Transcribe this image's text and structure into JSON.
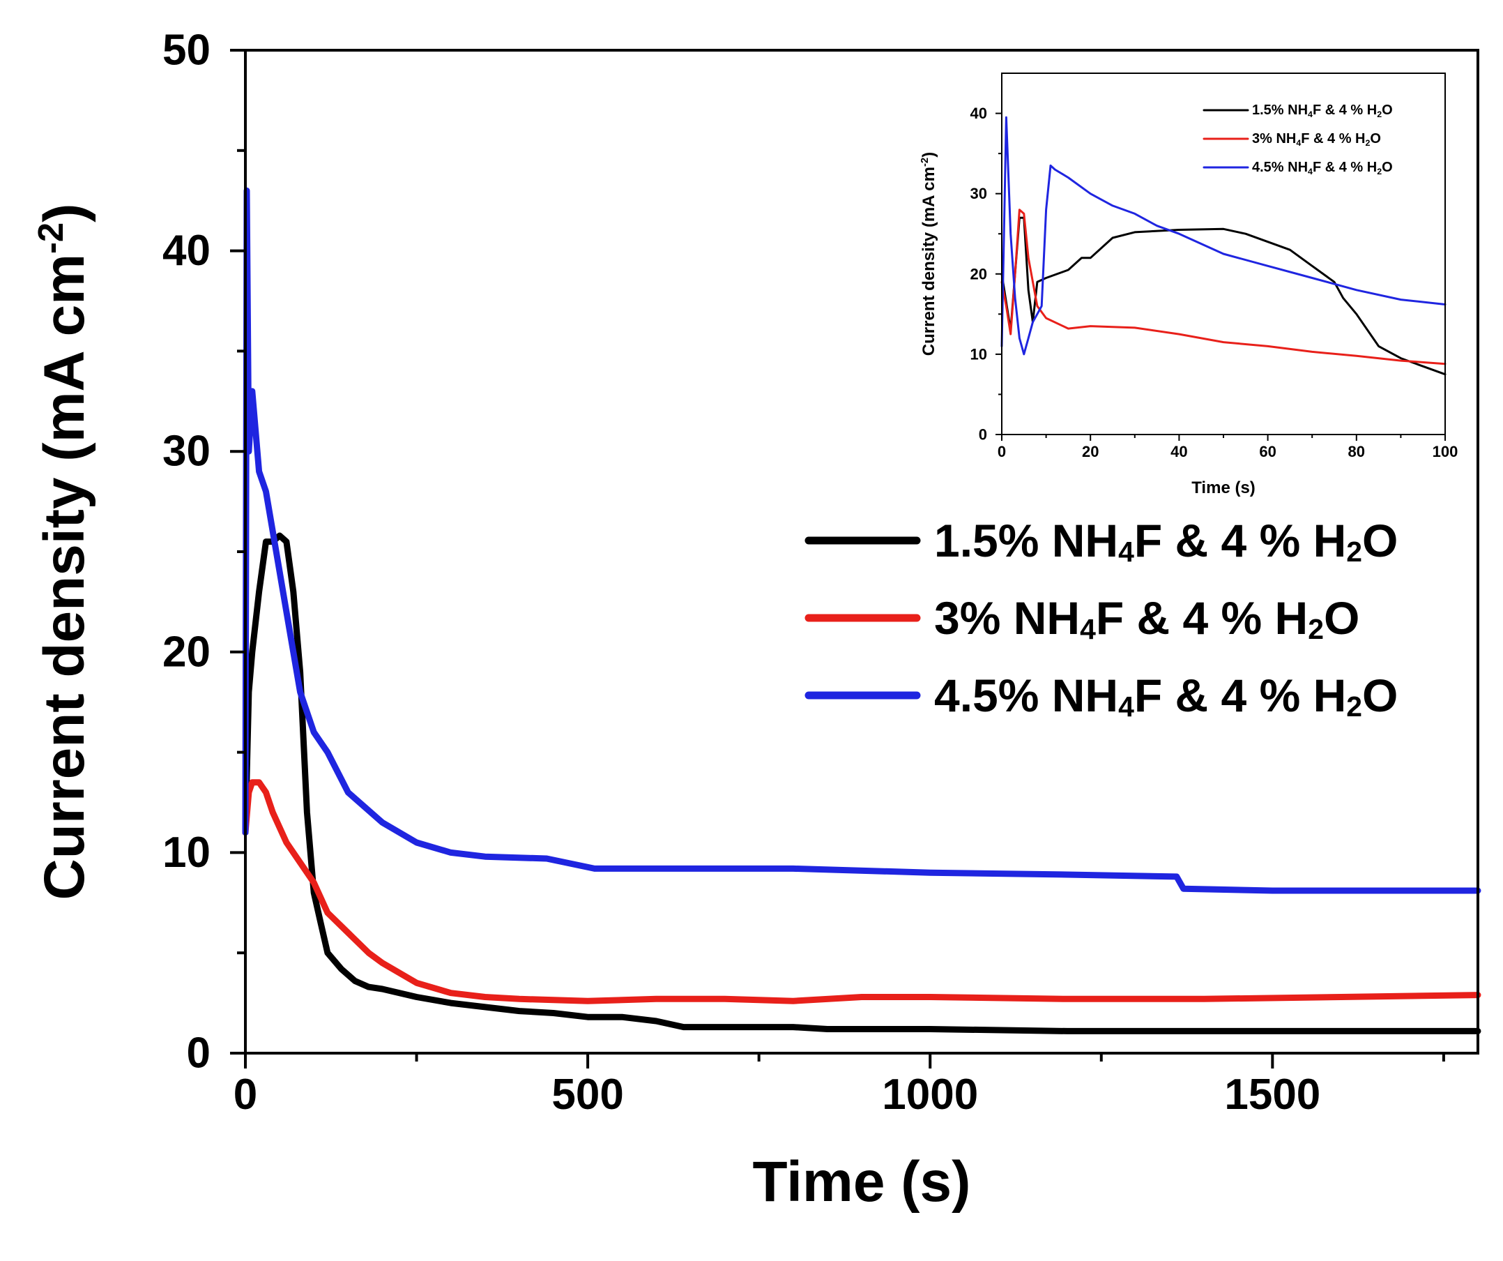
{
  "chart_data": [
    {
      "type": "line",
      "title": "",
      "xlabel": "Time (s)",
      "ylabel": "Current density (mA cm",
      "ylabel_sup": "-2",
      "ylabel_end": ")",
      "xlim": [
        0,
        1800
      ],
      "ylim": [
        0,
        50
      ],
      "xticks": [
        0,
        500,
        1000,
        1500
      ],
      "yticks": [
        0,
        10,
        20,
        30,
        40,
        50
      ],
      "grid": false,
      "legend_position": "right",
      "series": [
        {
          "name": "1.5% NH4F & 4 % H2O",
          "label_parts": [
            "1.5% NH",
            "4",
            "F & 4 % H",
            "2",
            "O"
          ],
          "color": "#000000",
          "x": [
            0,
            5,
            10,
            20,
            30,
            40,
            50,
            60,
            70,
            80,
            90,
            100,
            110,
            120,
            140,
            160,
            180,
            200,
            250,
            300,
            350,
            400,
            450,
            500,
            550,
            600,
            640,
            700,
            800,
            850,
            1000,
            1200,
            1400,
            1600,
            1800
          ],
          "y": [
            11,
            18,
            20,
            23,
            25.5,
            25.5,
            25.8,
            25.5,
            23,
            19,
            12,
            8,
            6.5,
            5,
            4.2,
            3.6,
            3.3,
            3.2,
            2.8,
            2.5,
            2.3,
            2.1,
            2.0,
            1.8,
            1.8,
            1.6,
            1.3,
            1.3,
            1.3,
            1.2,
            1.2,
            1.1,
            1.1,
            1.1,
            1.1
          ]
        },
        {
          "name": "3% NH4F & 4 % H2O",
          "label_parts": [
            "3%  NH",
            "4",
            "F & 4 % H",
            "2",
            "O"
          ],
          "color": "#e8201a",
          "x": [
            0,
            5,
            10,
            20,
            30,
            40,
            60,
            80,
            100,
            120,
            150,
            180,
            200,
            250,
            300,
            350,
            400,
            500,
            600,
            700,
            800,
            900,
            1000,
            1200,
            1400,
            1600,
            1800
          ],
          "y": [
            11,
            13,
            13.5,
            13.5,
            13,
            12,
            10.5,
            9.5,
            8.5,
            7,
            6,
            5,
            4.5,
            3.5,
            3,
            2.8,
            2.7,
            2.6,
            2.7,
            2.7,
            2.6,
            2.8,
            2.8,
            2.7,
            2.7,
            2.8,
            2.9
          ]
        },
        {
          "name": "4.5% NH4F & 4 % H2O",
          "label_parts": [
            "4.5%  NH",
            "4",
            "F & 4 % H",
            "2",
            "O"
          ],
          "color": "#1f25e0",
          "x": [
            0,
            2,
            5,
            10,
            15,
            20,
            30,
            40,
            60,
            80,
            100,
            120,
            150,
            200,
            250,
            300,
            350,
            440,
            510,
            600,
            800,
            1000,
            1200,
            1360,
            1370,
            1500,
            1800
          ],
          "y": [
            11,
            43,
            30,
            33,
            31,
            29,
            28,
            26,
            22,
            18,
            16,
            15,
            13,
            11.5,
            10.5,
            10,
            9.8,
            9.7,
            9.2,
            9.2,
            9.2,
            9.0,
            8.9,
            8.8,
            8.2,
            8.1,
            8.1
          ]
        }
      ]
    },
    {
      "type": "line",
      "title": "",
      "xlabel": "Time (s)",
      "ylabel": "Current density (mA cm",
      "ylabel_sup": "-2",
      "ylabel_end": ")",
      "xlim": [
        0,
        100
      ],
      "ylim": [
        0,
        45
      ],
      "xticks": [
        0,
        20,
        40,
        60,
        80,
        100
      ],
      "yticks": [
        0,
        10,
        20,
        30,
        40
      ],
      "grid": false,
      "legend_position": "top-right",
      "series": [
        {
          "name": "1.5% NH4F & 4 % H2O",
          "label_parts": [
            "1.5% NH",
            "4",
            "F & 4 % H",
            "2",
            "O"
          ],
          "color": "#000000",
          "x": [
            0,
            2,
            4,
            5,
            6,
            7,
            8,
            10,
            15,
            18,
            20,
            25,
            30,
            40,
            50,
            55,
            60,
            65,
            70,
            75,
            77,
            80,
            85,
            90,
            95,
            100
          ],
          "y": [
            20,
            13,
            27,
            27,
            18,
            14,
            19,
            19.5,
            20.5,
            22,
            22,
            24.5,
            25.2,
            25.5,
            25.6,
            25,
            24,
            23,
            21,
            19,
            17,
            15,
            11,
            9.5,
            8.5,
            7.5
          ]
        },
        {
          "name": "3% NH4F & 4 % H2O",
          "label_parts": [
            "3%  NH",
            "4",
            "F & 4 % H",
            "2",
            "O"
          ],
          "color": "#e8201a",
          "x": [
            0,
            1,
            2,
            3,
            4,
            5,
            6,
            8,
            10,
            15,
            20,
            30,
            40,
            50,
            60,
            70,
            80,
            90,
            100
          ],
          "y": [
            19,
            16,
            12.5,
            20,
            28,
            27.5,
            22,
            16,
            14.5,
            13.2,
            13.5,
            13.3,
            12.5,
            11.5,
            11,
            10.3,
            9.8,
            9.2,
            8.8
          ]
        },
        {
          "name": "4.5% NH4F & 4 % H2O",
          "label_parts": [
            "4.5%  NH",
            "4",
            "F & 4 % H",
            "2",
            "O"
          ],
          "color": "#1f25e0",
          "x": [
            0,
            1,
            2,
            3,
            4,
            5,
            6,
            7,
            8,
            9,
            10,
            11,
            12,
            15,
            20,
            25,
            30,
            35,
            40,
            50,
            60,
            70,
            80,
            90,
            100
          ],
          "y": [
            11,
            39.5,
            25,
            17,
            12,
            10,
            12,
            14,
            15,
            16,
            28,
            33.5,
            33,
            32,
            30,
            28.5,
            27.5,
            26,
            25,
            22.5,
            21,
            19.5,
            18,
            16.8,
            16.2
          ]
        }
      ]
    }
  ]
}
